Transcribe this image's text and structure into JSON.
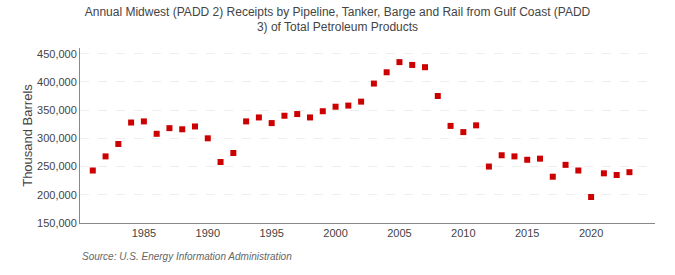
{
  "chart_data": {
    "type": "scatter",
    "title": "Annual Midwest (PADD 2) Receipts by Pipeline, Tanker, Barge and Rail from Gulf Coast (PADD\n3) of Total Petroleum Products",
    "ylabel": "Thousand Barrels",
    "annotations": [
      "Source: U.S. Energy Information Administration"
    ],
    "color": "#cc0000",
    "marker": "square",
    "grid": "y",
    "x": [
      1981,
      1982,
      1983,
      1984,
      1985,
      1986,
      1987,
      1988,
      1989,
      1990,
      1991,
      1992,
      1993,
      1994,
      1995,
      1996,
      1997,
      1998,
      1999,
      2000,
      2001,
      2002,
      2003,
      2004,
      2005,
      2006,
      2007,
      2008,
      2009,
      2010,
      2011,
      2012,
      2013,
      2014,
      2015,
      2016,
      2017,
      2018,
      2019,
      2020,
      2021,
      2022,
      2023
    ],
    "values": [
      243000,
      268000,
      290000,
      328000,
      330000,
      308000,
      318000,
      316000,
      321000,
      300000,
      258000,
      274000,
      330000,
      337000,
      327000,
      340000,
      343000,
      337000,
      348000,
      356000,
      358000,
      365000,
      397000,
      417000,
      435000,
      430000,
      426000,
      375000,
      322000,
      311000,
      323000,
      250000,
      270000,
      268000,
      262000,
      264000,
      232000,
      253000,
      243000,
      196000,
      238000,
      235000,
      240000
    ],
    "xlim": [
      1980,
      2025
    ],
    "xticks": [
      1985,
      1990,
      1995,
      2000,
      2005,
      2010,
      2015,
      2020
    ],
    "ylim": [
      150000,
      460000
    ],
    "yticks": [
      {
        "value": 150000,
        "label": "150,000"
      },
      {
        "value": 200000,
        "label": "200,000"
      },
      {
        "value": 250000,
        "label": "250,000"
      },
      {
        "value": 300000,
        "label": "300,000"
      },
      {
        "value": 350000,
        "label": "350,000"
      },
      {
        "value": 400000,
        "label": "400,000"
      },
      {
        "value": 450000,
        "label": "450,000"
      }
    ]
  }
}
